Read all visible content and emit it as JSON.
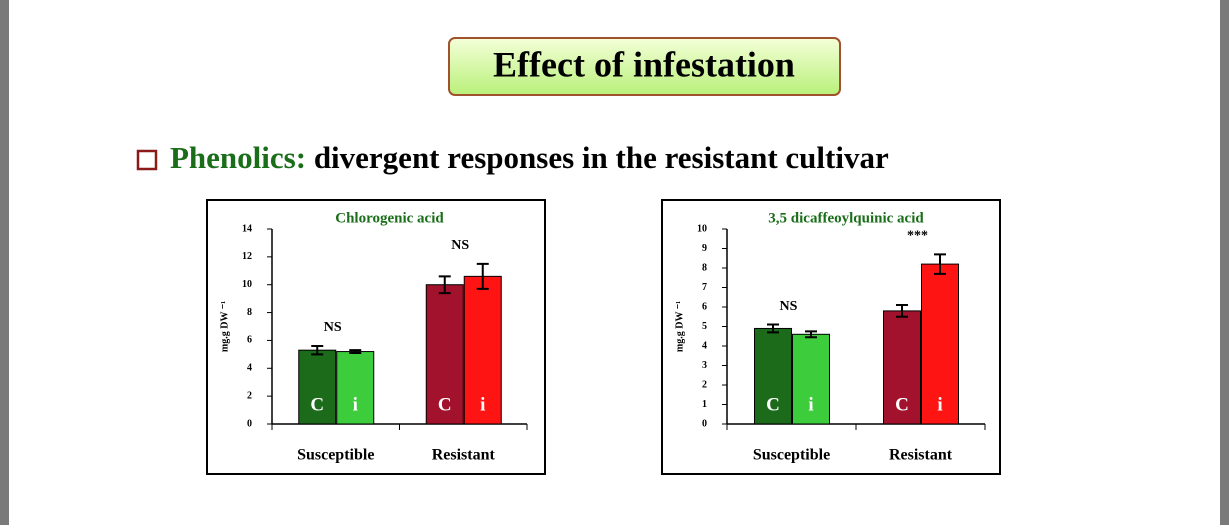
{
  "title": "Effect of infestation",
  "heading": {
    "label": "Phenolics:",
    "text": "divergent responses in the resistant cultivar"
  },
  "chart_data": [
    {
      "type": "bar",
      "title": "Chlorogenic acid",
      "y_label": "mg.g DW ⁻¹",
      "categories": [
        "Susceptible",
        "Resistant"
      ],
      "series": [
        {
          "name": "C",
          "colors": [
            "#1b6b1b",
            "#a3122c"
          ],
          "values": [
            5.3,
            10.0
          ],
          "errors": [
            0.3,
            0.6
          ]
        },
        {
          "name": "i",
          "colors": [
            "#3ccc3c",
            "#ff1414"
          ],
          "values": [
            5.2,
            10.6
          ],
          "errors": [
            0.1,
            0.9
          ]
        }
      ],
      "annotations": [
        "NS",
        "NS"
      ],
      "ylim": [
        0,
        14
      ],
      "yticks": [
        0,
        2,
        4,
        6,
        8,
        10,
        12,
        14
      ]
    },
    {
      "type": "bar",
      "title": "3,5 dicaffeoylquinic acid",
      "y_label": "mg.g DW ⁻¹",
      "categories": [
        "Susceptible",
        "Resistant"
      ],
      "series": [
        {
          "name": "C",
          "colors": [
            "#1b6b1b",
            "#a3122c"
          ],
          "values": [
            4.9,
            5.8
          ],
          "errors": [
            0.2,
            0.3
          ]
        },
        {
          "name": "i",
          "colors": [
            "#3ccc3c",
            "#ff1414"
          ],
          "values": [
            4.6,
            8.2
          ],
          "errors": [
            0.15,
            0.5
          ]
        }
      ],
      "annotations": [
        "NS",
        "***"
      ],
      "ylim": [
        0,
        10
      ],
      "yticks": [
        0,
        1,
        2,
        3,
        4,
        5,
        6,
        7,
        8,
        9,
        10
      ]
    }
  ]
}
